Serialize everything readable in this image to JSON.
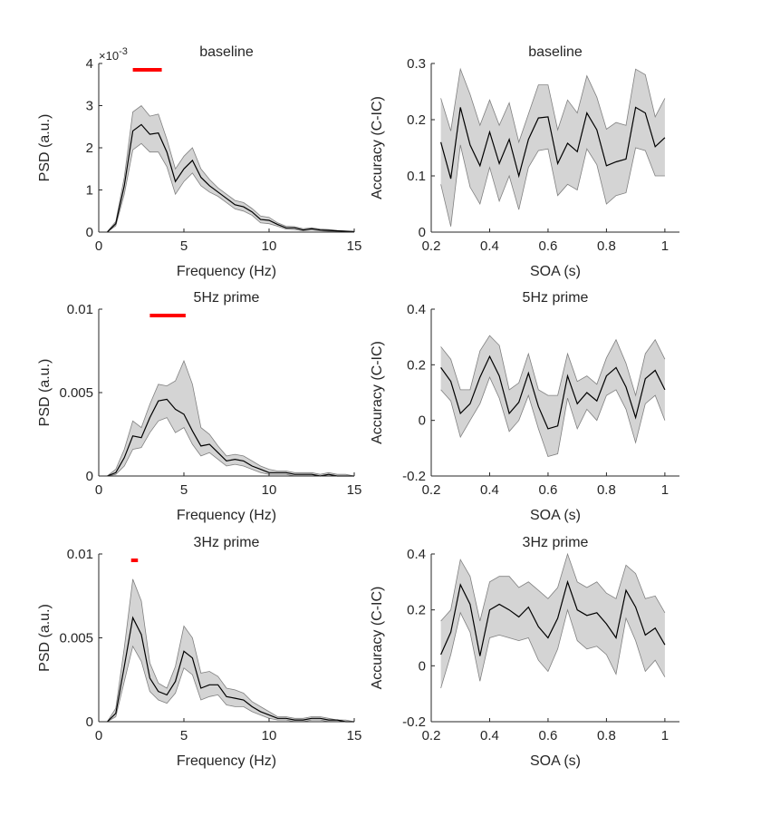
{
  "chart_data": [
    {
      "type": "area",
      "title": "baseline",
      "xlabel": "Frequency (Hz)",
      "ylabel": "PSD (a.u.)",
      "exponent_label": "×10",
      "exponent_power": "-3",
      "xlim": [
        0,
        15
      ],
      "ylim": [
        0,
        4
      ],
      "xticks": [
        0,
        5,
        10,
        15
      ],
      "xtick_labels": [
        "0",
        "5",
        "10",
        "15"
      ],
      "yticks": [
        0,
        1,
        2,
        3,
        4
      ],
      "ytick_labels": [
        "0",
        "1",
        "2",
        "3",
        "4"
      ],
      "x": [
        0.5,
        1.0,
        1.5,
        2.0,
        2.5,
        3.0,
        3.5,
        4.0,
        4.5,
        5.0,
        5.5,
        6.0,
        6.5,
        7.0,
        7.5,
        8.0,
        8.5,
        9.0,
        9.5,
        10.0,
        10.5,
        11.0,
        11.5,
        12.0,
        12.5,
        13.0,
        13.5,
        14.0,
        14.5,
        15.0
      ],
      "mean": [
        0.0,
        0.2,
        1.1,
        2.4,
        2.55,
        2.32,
        2.35,
        1.9,
        1.2,
        1.5,
        1.7,
        1.3,
        1.1,
        0.95,
        0.8,
        0.65,
        0.6,
        0.48,
        0.3,
        0.28,
        0.18,
        0.1,
        0.1,
        0.05,
        0.08,
        0.05,
        0.04,
        0.03,
        0.02,
        0.01
      ],
      "upper": [
        0.01,
        0.25,
        1.3,
        2.85,
        3.0,
        2.75,
        2.8,
        2.2,
        1.5,
        1.8,
        2.0,
        1.5,
        1.25,
        1.05,
        0.9,
        0.75,
        0.7,
        0.56,
        0.38,
        0.35,
        0.22,
        0.14,
        0.13,
        0.08,
        0.1,
        0.07,
        0.06,
        0.04,
        0.03,
        0.02
      ],
      "lower": [
        0.0,
        0.15,
        0.9,
        1.95,
        2.1,
        1.9,
        1.9,
        1.55,
        0.9,
        1.2,
        1.4,
        1.1,
        0.95,
        0.85,
        0.7,
        0.55,
        0.5,
        0.4,
        0.22,
        0.2,
        0.14,
        0.07,
        0.06,
        0.03,
        0.05,
        0.03,
        0.02,
        0.02,
        0.01,
        0.0
      ],
      "significance_bar": [
        2.0,
        3.7
      ]
    },
    {
      "type": "area",
      "title": "baseline",
      "xlabel": "SOA (s)",
      "ylabel": "Accuracy (C-IC)",
      "xlim": [
        0.2,
        1.05
      ],
      "ylim": [
        0,
        0.3
      ],
      "xticks": [
        0.2,
        0.4,
        0.6,
        0.8,
        1.0
      ],
      "xtick_labels": [
        "0.2",
        "0.4",
        "0.6",
        "0.8",
        "1"
      ],
      "yticks": [
        0,
        0.1,
        0.2,
        0.3
      ],
      "ytick_labels": [
        "0",
        "0.1",
        "0.2",
        "0.3"
      ],
      "x": [
        0.233,
        0.267,
        0.3,
        0.333,
        0.367,
        0.4,
        0.433,
        0.467,
        0.5,
        0.533,
        0.567,
        0.6,
        0.633,
        0.667,
        0.7,
        0.733,
        0.767,
        0.8,
        0.833,
        0.867,
        0.9,
        0.933,
        0.967,
        1.0
      ],
      "mean": [
        0.16,
        0.095,
        0.222,
        0.155,
        0.118,
        0.178,
        0.122,
        0.165,
        0.1,
        0.165,
        0.203,
        0.205,
        0.122,
        0.158,
        0.143,
        0.212,
        0.182,
        0.118,
        0.125,
        0.13,
        0.222,
        0.212,
        0.152,
        0.168
      ],
      "upper": [
        0.238,
        0.18,
        0.29,
        0.245,
        0.19,
        0.235,
        0.19,
        0.23,
        0.16,
        0.21,
        0.262,
        0.262,
        0.182,
        0.235,
        0.212,
        0.278,
        0.24,
        0.183,
        0.195,
        0.19,
        0.29,
        0.28,
        0.205,
        0.238
      ],
      "lower": [
        0.085,
        0.01,
        0.155,
        0.08,
        0.05,
        0.115,
        0.055,
        0.1,
        0.04,
        0.115,
        0.145,
        0.148,
        0.065,
        0.085,
        0.075,
        0.148,
        0.12,
        0.05,
        0.065,
        0.07,
        0.15,
        0.145,
        0.1,
        0.1
      ]
    },
    {
      "type": "area",
      "title": "5Hz prime",
      "xlabel": "Frequency (Hz)",
      "ylabel": "PSD (a.u.)",
      "xlim": [
        0,
        15
      ],
      "ylim": [
        0,
        0.01
      ],
      "xticks": [
        0,
        5,
        10,
        15
      ],
      "xtick_labels": [
        "0",
        "5",
        "10",
        "15"
      ],
      "yticks": [
        0,
        0.005,
        0.01
      ],
      "ytick_labels": [
        "0",
        "0.005",
        "0.01"
      ],
      "x": [
        0.5,
        1.0,
        1.5,
        2.0,
        2.5,
        3.0,
        3.5,
        4.0,
        4.5,
        5.0,
        5.5,
        6.0,
        6.5,
        7.0,
        7.5,
        8.0,
        8.5,
        9.0,
        9.5,
        10.0,
        10.5,
        11.0,
        11.5,
        12.0,
        12.5,
        13.0,
        13.5,
        14.0,
        14.5,
        15.0
      ],
      "mean": [
        0.0,
        0.0002,
        0.0011,
        0.0024,
        0.0023,
        0.0035,
        0.0045,
        0.0046,
        0.004,
        0.0037,
        0.0027,
        0.0018,
        0.0019,
        0.0014,
        0.0009,
        0.001,
        0.0009,
        0.0006,
        0.0004,
        0.0002,
        0.0002,
        0.0002,
        0.0001,
        0.0001,
        0.0001,
        0.0,
        0.0001,
        0.0,
        0.0,
        0.0
      ],
      "upper": [
        0.0,
        0.0004,
        0.0016,
        0.0033,
        0.0029,
        0.0043,
        0.0055,
        0.0054,
        0.0057,
        0.0069,
        0.0055,
        0.0029,
        0.0025,
        0.0018,
        0.0012,
        0.0013,
        0.0012,
        0.0009,
        0.0006,
        0.0004,
        0.0003,
        0.0003,
        0.0002,
        0.0002,
        0.0002,
        0.0001,
        0.0002,
        0.0001,
        0.0001,
        0.0
      ],
      "lower": [
        0.0,
        0.0001,
        0.0006,
        0.0016,
        0.0017,
        0.0026,
        0.0033,
        0.0035,
        0.0026,
        0.0029,
        0.0019,
        0.0012,
        0.0014,
        0.001,
        0.0006,
        0.0007,
        0.0006,
        0.0004,
        0.0002,
        0.0001,
        0.0001,
        0.0001,
        0.0,
        0.0,
        0.0,
        0.0,
        0.0,
        0.0,
        0.0,
        0.0
      ],
      "significance_bar": [
        3.0,
        5.1
      ]
    },
    {
      "type": "area",
      "title": "5Hz prime",
      "xlabel": "SOA (s)",
      "ylabel": "Accuracy (C-IC)",
      "xlim": [
        0.2,
        1.05
      ],
      "ylim": [
        -0.2,
        0.4
      ],
      "xticks": [
        0.2,
        0.4,
        0.6,
        0.8,
        1.0
      ],
      "xtick_labels": [
        "0.2",
        "0.4",
        "0.6",
        "0.8",
        "1"
      ],
      "yticks": [
        -0.2,
        0,
        0.2,
        0.4
      ],
      "ytick_labels": [
        "-0.2",
        "0",
        "0.2",
        "0.4"
      ],
      "x": [
        0.233,
        0.267,
        0.3,
        0.333,
        0.367,
        0.4,
        0.433,
        0.467,
        0.5,
        0.533,
        0.567,
        0.6,
        0.633,
        0.667,
        0.7,
        0.733,
        0.767,
        0.8,
        0.833,
        0.867,
        0.9,
        0.933,
        0.967,
        1.0
      ],
      "mean": [
        0.19,
        0.14,
        0.025,
        0.06,
        0.155,
        0.23,
        0.16,
        0.025,
        0.065,
        0.17,
        0.05,
        -0.03,
        -0.02,
        0.16,
        0.06,
        0.1,
        0.07,
        0.16,
        0.19,
        0.12,
        0.01,
        0.15,
        0.18,
        0.11
      ],
      "upper": [
        0.265,
        0.22,
        0.11,
        0.11,
        0.25,
        0.305,
        0.27,
        0.11,
        0.135,
        0.24,
        0.11,
        0.09,
        0.09,
        0.24,
        0.14,
        0.16,
        0.13,
        0.225,
        0.29,
        0.205,
        0.09,
        0.24,
        0.29,
        0.22
      ],
      "lower": [
        0.11,
        0.07,
        -0.06,
        0.0,
        0.06,
        0.155,
        0.08,
        -0.04,
        0.0,
        0.09,
        -0.03,
        -0.13,
        -0.12,
        0.08,
        -0.03,
        0.04,
        0.0,
        0.09,
        0.11,
        0.04,
        -0.08,
        0.06,
        0.09,
        0.0
      ]
    },
    {
      "type": "area",
      "title": "3Hz prime",
      "xlabel": "Frequency (Hz)",
      "ylabel": "PSD (a.u.)",
      "xlim": [
        0,
        15
      ],
      "ylim": [
        0,
        0.01
      ],
      "xticks": [
        0,
        5,
        10,
        15
      ],
      "xtick_labels": [
        "0",
        "5",
        "10",
        "15"
      ],
      "yticks": [
        0,
        0.005,
        0.01
      ],
      "ytick_labels": [
        "0",
        "0.005",
        "0.01"
      ],
      "x": [
        0.5,
        1.0,
        1.5,
        2.0,
        2.5,
        3.0,
        3.5,
        4.0,
        4.5,
        5.0,
        5.5,
        6.0,
        6.5,
        7.0,
        7.5,
        8.0,
        8.5,
        9.0,
        9.5,
        10.0,
        10.5,
        11.0,
        11.5,
        12.0,
        12.5,
        13.0,
        13.5,
        14.0,
        14.5,
        15.0
      ],
      "mean": [
        0.0,
        0.0005,
        0.0033,
        0.0062,
        0.0052,
        0.0026,
        0.0018,
        0.0016,
        0.0024,
        0.0042,
        0.0038,
        0.002,
        0.0022,
        0.0022,
        0.0015,
        0.0014,
        0.0013,
        0.0009,
        0.0006,
        0.0004,
        0.0002,
        0.0002,
        0.0001,
        0.0001,
        0.0002,
        0.0002,
        0.0001,
        0.0001,
        0.0,
        0.0
      ],
      "upper": [
        0.0,
        0.0008,
        0.0044,
        0.0085,
        0.0072,
        0.0035,
        0.0023,
        0.002,
        0.0033,
        0.0057,
        0.005,
        0.0029,
        0.003,
        0.0027,
        0.002,
        0.0019,
        0.0017,
        0.0012,
        0.0009,
        0.0006,
        0.0003,
        0.0003,
        0.0002,
        0.0002,
        0.0003,
        0.0003,
        0.0002,
        0.0001,
        0.0001,
        0.0
      ],
      "lower": [
        0.0,
        0.0003,
        0.0024,
        0.0045,
        0.0036,
        0.0018,
        0.0013,
        0.0011,
        0.0017,
        0.0032,
        0.0028,
        0.0013,
        0.0015,
        0.0016,
        0.001,
        0.0009,
        0.0009,
        0.0006,
        0.0004,
        0.0002,
        0.0001,
        0.0001,
        0.0,
        0.0,
        0.0001,
        0.0001,
        0.0,
        0.0,
        0.0,
        0.0
      ],
      "significance_bar": [
        1.9,
        2.3
      ]
    },
    {
      "type": "area",
      "title": "3Hz prime",
      "xlabel": "SOA (s)",
      "ylabel": "Accuracy (C-IC)",
      "xlim": [
        0.2,
        1.05
      ],
      "ylim": [
        -0.2,
        0.4
      ],
      "xticks": [
        0.2,
        0.4,
        0.6,
        0.8,
        1.0
      ],
      "xtick_labels": [
        "0.2",
        "0.4",
        "0.6",
        "0.8",
        "1"
      ],
      "yticks": [
        -0.2,
        0,
        0.2,
        0.4
      ],
      "ytick_labels": [
        "-0.2",
        "0",
        "0.2",
        "0.4"
      ],
      "x": [
        0.233,
        0.267,
        0.3,
        0.333,
        0.367,
        0.4,
        0.433,
        0.467,
        0.5,
        0.533,
        0.567,
        0.6,
        0.633,
        0.667,
        0.7,
        0.733,
        0.767,
        0.8,
        0.833,
        0.867,
        0.9,
        0.933,
        0.967,
        1.0
      ],
      "mean": [
        0.04,
        0.12,
        0.29,
        0.22,
        0.035,
        0.2,
        0.22,
        0.2,
        0.175,
        0.21,
        0.14,
        0.1,
        0.17,
        0.3,
        0.2,
        0.18,
        0.19,
        0.15,
        0.1,
        0.27,
        0.21,
        0.11,
        0.135,
        0.075
      ],
      "upper": [
        0.16,
        0.2,
        0.38,
        0.32,
        0.16,
        0.3,
        0.32,
        0.32,
        0.28,
        0.3,
        0.27,
        0.24,
        0.28,
        0.4,
        0.3,
        0.28,
        0.3,
        0.26,
        0.24,
        0.36,
        0.33,
        0.24,
        0.25,
        0.19
      ],
      "lower": [
        -0.08,
        0.04,
        0.19,
        0.12,
        -0.055,
        0.1,
        0.11,
        0.1,
        0.09,
        0.1,
        0.02,
        -0.02,
        0.06,
        0.2,
        0.09,
        0.06,
        0.07,
        0.04,
        -0.03,
        0.17,
        0.09,
        -0.02,
        0.02,
        -0.04
      ]
    }
  ],
  "colors": {
    "band": "#d4d4d4",
    "band_edge": "#808080",
    "mean_line": "#000000",
    "significance": "#ff0000",
    "axis": "#262626"
  }
}
